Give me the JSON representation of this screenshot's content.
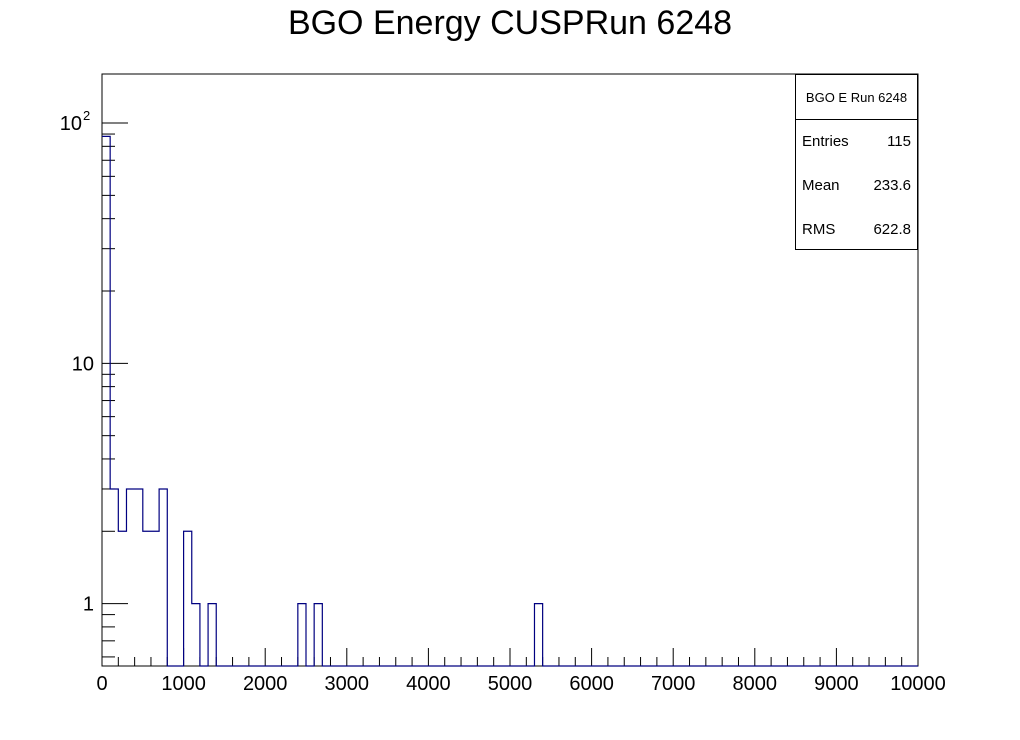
{
  "chart_data": {
    "type": "histogram",
    "title": "BGO Energy CUSPRun 6248",
    "xlabel": "",
    "ylabel": "",
    "xlim": [
      0,
      10000
    ],
    "ylim": [
      0.55,
      160
    ],
    "yscale": "log",
    "bin_width": 100,
    "bins": [
      {
        "x0": 0,
        "x1": 100,
        "y": 88
      },
      {
        "x0": 100,
        "x1": 200,
        "y": 3
      },
      {
        "x0": 200,
        "x1": 300,
        "y": 2
      },
      {
        "x0": 300,
        "x1": 400,
        "y": 3
      },
      {
        "x0": 400,
        "x1": 500,
        "y": 3
      },
      {
        "x0": 500,
        "x1": 600,
        "y": 2
      },
      {
        "x0": 600,
        "x1": 700,
        "y": 2
      },
      {
        "x0": 700,
        "x1": 800,
        "y": 3
      },
      {
        "x0": 1000,
        "x1": 1100,
        "y": 2
      },
      {
        "x0": 1100,
        "x1": 1200,
        "y": 1
      },
      {
        "x0": 1300,
        "x1": 1400,
        "y": 1
      },
      {
        "x0": 2400,
        "x1": 2500,
        "y": 1
      },
      {
        "x0": 2600,
        "x1": 2700,
        "y": 1
      },
      {
        "x0": 5300,
        "x1": 5400,
        "y": 1
      }
    ],
    "x_ticks": [
      {
        "value": 0,
        "label": "0"
      },
      {
        "value": 1000,
        "label": "1000"
      },
      {
        "value": 2000,
        "label": "2000"
      },
      {
        "value": 3000,
        "label": "3000"
      },
      {
        "value": 4000,
        "label": "4000"
      },
      {
        "value": 5000,
        "label": "5000"
      },
      {
        "value": 6000,
        "label": "6000"
      },
      {
        "value": 7000,
        "label": "7000"
      },
      {
        "value": 8000,
        "label": "8000"
      },
      {
        "value": 9000,
        "label": "9000"
      },
      {
        "value": 10000,
        "label": "10000"
      }
    ],
    "y_ticks": [
      {
        "value": 1,
        "label": "1"
      },
      {
        "value": 10,
        "label": "10"
      },
      {
        "value": 100,
        "base": "10",
        "exp": "2"
      }
    ],
    "stats": {
      "name": "BGO E Run 6248",
      "entries_label": "Entries",
      "entries": "115",
      "mean_label": "Mean",
      "mean": "233.6",
      "rms_label": "RMS",
      "rms": "622.8"
    },
    "colors": {
      "line": "#000080",
      "axis": "#000000"
    },
    "grid": false
  }
}
